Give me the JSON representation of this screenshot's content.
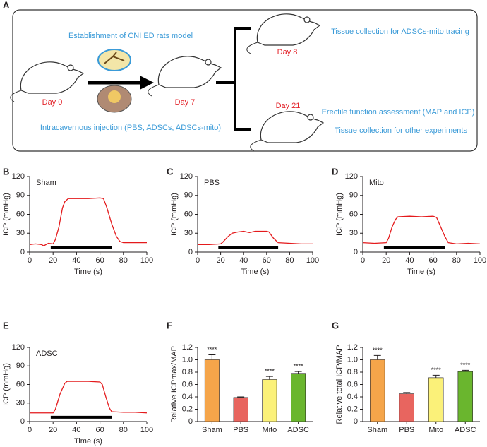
{
  "panel_a": {
    "label": "A",
    "model": "Establishment of CNI ED rats model",
    "injection": "Intracavernous injection (PBS, ADSCs, ADSCs-mito)",
    "day0": "Day 0",
    "day7": "Day 7",
    "day8": "Day 8",
    "day21": "Day 21",
    "tracing": "Tissue collection for ADSCs-mito tracing",
    "assessment": "Erectile function assessment (MAP and ICP)",
    "other": "Tissue collection for other experiments"
  },
  "chart_data": [
    {
      "type": "line",
      "panel": "B",
      "title": "Sham",
      "xlabel": "Time (s)",
      "ylabel": "ICP (mmHg)",
      "color": "#e41a1c",
      "x": [
        0,
        5,
        10,
        12,
        16,
        20,
        22,
        25,
        28,
        30,
        33,
        40,
        50,
        60,
        63,
        66,
        70,
        74,
        77,
        80,
        90,
        100
      ],
      "values": [
        12,
        13,
        12,
        10,
        14,
        13,
        20,
        40,
        70,
        80,
        85,
        85,
        85,
        86,
        85,
        70,
        45,
        25,
        17,
        15,
        15,
        15
      ],
      "stimulation": {
        "start": 18,
        "end": 70,
        "level": 7
      },
      "xlim": [
        0,
        100
      ],
      "xticks": [
        0,
        20,
        40,
        60,
        80,
        100
      ],
      "ylim": [
        0,
        120
      ],
      "yticks": [
        0,
        30,
        60,
        90,
        120
      ]
    },
    {
      "type": "line",
      "panel": "C",
      "title": "PBS",
      "xlabel": "Time (s)",
      "ylabel": "ICP (mmHg)",
      "color": "#e41a1c",
      "x": [
        0,
        10,
        20,
        22,
        26,
        30,
        35,
        40,
        45,
        50,
        55,
        60,
        62,
        66,
        70,
        80,
        90,
        100
      ],
      "values": [
        12,
        12,
        13,
        16,
        24,
        30,
        32,
        33,
        31,
        33,
        33,
        33,
        32,
        22,
        15,
        14,
        13,
        13
      ],
      "stimulation": {
        "start": 18,
        "end": 70,
        "level": 7
      },
      "xlim": [
        0,
        100
      ],
      "xticks": [
        0,
        20,
        40,
        60,
        80,
        100
      ],
      "ylim": [
        0,
        120
      ],
      "yticks": [
        0,
        30,
        60,
        90,
        120
      ]
    },
    {
      "type": "line",
      "panel": "D",
      "title": "Mito",
      "xlabel": "Time (s)",
      "ylabel": "ICP (mmHg)",
      "color": "#e41a1c",
      "x": [
        0,
        10,
        20,
        22,
        25,
        28,
        30,
        40,
        50,
        60,
        63,
        66,
        70,
        73,
        80,
        90,
        100
      ],
      "values": [
        15,
        14,
        15,
        22,
        40,
        52,
        56,
        57,
        56,
        57,
        55,
        42,
        25,
        15,
        13,
        14,
        13
      ],
      "stimulation": {
        "start": 18,
        "end": 70,
        "level": 7
      },
      "xlim": [
        0,
        100
      ],
      "xticks": [
        0,
        20,
        40,
        60,
        80,
        100
      ],
      "ylim": [
        0,
        120
      ],
      "yticks": [
        0,
        30,
        60,
        90,
        120
      ]
    },
    {
      "type": "line",
      "panel": "E",
      "title": "ADSC",
      "xlabel": "Time (s)",
      "ylabel": "ICP (mmHg)",
      "color": "#e41a1c",
      "x": [
        0,
        10,
        20,
        22,
        26,
        30,
        32,
        40,
        50,
        60,
        62,
        65,
        68,
        70,
        80,
        90,
        100
      ],
      "values": [
        14,
        14,
        14,
        20,
        45,
        62,
        65,
        65,
        65,
        64,
        60,
        40,
        22,
        16,
        15,
        15,
        14
      ],
      "stimulation": {
        "start": 18,
        "end": 70,
        "level": 7
      },
      "xlim": [
        0,
        100
      ],
      "xticks": [
        0,
        20,
        40,
        60,
        80,
        100
      ],
      "ylim": [
        0,
        120
      ],
      "yticks": [
        0,
        30,
        60,
        90,
        120
      ]
    },
    {
      "type": "bar",
      "panel": "F",
      "ylabel": "Relative ICPmax/MAP",
      "categories": [
        "Sham",
        "PBS",
        "Mito",
        "ADSC"
      ],
      "values": [
        1.0,
        0.39,
        0.68,
        0.78
      ],
      "errors": [
        0.08,
        0.01,
        0.05,
        0.03
      ],
      "colors": [
        "#f5a54a",
        "#e8655f",
        "#fbf179",
        "#6ab62e"
      ],
      "annotations": [
        "****",
        null,
        "****",
        "****"
      ],
      "ylim": [
        0,
        1.2
      ],
      "yticks": [
        0,
        0.2,
        0.4,
        0.6,
        0.8,
        {
          "value": 1,
          "label": "1.0"
        },
        1.2
      ]
    },
    {
      "type": "bar",
      "panel": "G",
      "ylabel": "Relative total ICP/MAP",
      "categories": [
        "Sham",
        "PBS",
        "Mito",
        "ADSC"
      ],
      "values": [
        1.0,
        0.45,
        0.71,
        0.81
      ],
      "errors": [
        0.07,
        0.02,
        0.04,
        0.02
      ],
      "colors": [
        "#f5a54a",
        "#e8655f",
        "#fbf179",
        "#6ab62e"
      ],
      "annotations": [
        "****",
        null,
        "****",
        "****"
      ],
      "ylim": [
        0,
        1.2
      ],
      "yticks": [
        0,
        0.2,
        0.4,
        0.6,
        0.8,
        {
          "value": 1,
          "label": "1.0"
        },
        1.2
      ]
    }
  ]
}
